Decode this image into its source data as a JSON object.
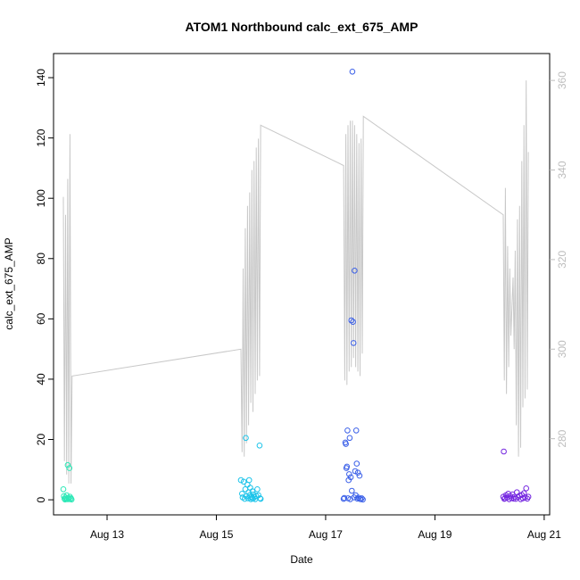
{
  "chart_data": {
    "type": "scatter",
    "title": "ATOM1 Northbound calc_ext_675_AMP",
    "xlabel": "Date",
    "ylabel": "calc_ext_675_AMP",
    "x_tick_labels": [
      "Aug 13",
      "Aug 15",
      "Aug 17",
      "Aug 19",
      "Aug 21"
    ],
    "x_ticks_day": [
      13,
      15,
      17,
      19,
      21
    ],
    "xlim_day": [
      12.02,
      21.1
    ],
    "ylim": [
      -5,
      148
    ],
    "y_ticks": [
      0,
      20,
      40,
      60,
      80,
      100,
      120,
      140
    ],
    "y2_ticks": [
      280,
      300,
      320,
      340,
      360
    ],
    "y2lim": [
      263,
      366
    ],
    "y2_color": "#bdbdbd",
    "line_color": "#c8c8c8",
    "line_series": {
      "name": "",
      "points": [
        [
          12.2,
          334
        ],
        [
          12.22,
          275
        ],
        [
          12.24,
          330
        ],
        [
          12.26,
          272
        ],
        [
          12.28,
          338
        ],
        [
          12.3,
          270
        ],
        [
          12.32,
          348
        ],
        [
          12.34,
          270
        ],
        [
          12.36,
          294
        ],
        [
          15.45,
          300
        ],
        [
          15.47,
          277
        ],
        [
          15.49,
          318
        ],
        [
          15.51,
          276
        ],
        [
          15.53,
          327
        ],
        [
          15.55,
          279
        ],
        [
          15.57,
          332
        ],
        [
          15.59,
          283
        ],
        [
          15.61,
          335
        ],
        [
          15.63,
          288
        ],
        [
          15.65,
          340
        ],
        [
          15.67,
          286
        ],
        [
          15.69,
          342
        ],
        [
          15.71,
          290
        ],
        [
          15.73,
          345
        ],
        [
          15.75,
          293
        ],
        [
          15.77,
          347
        ],
        [
          15.79,
          294
        ],
        [
          15.81,
          350
        ],
        [
          17.33,
          341
        ],
        [
          17.35,
          293
        ],
        [
          17.37,
          348
        ],
        [
          17.39,
          292
        ],
        [
          17.41,
          350
        ],
        [
          17.43,
          295
        ],
        [
          17.45,
          351
        ],
        [
          17.47,
          296
        ],
        [
          17.49,
          351
        ],
        [
          17.51,
          298
        ],
        [
          17.53,
          350
        ],
        [
          17.55,
          296
        ],
        [
          17.57,
          348
        ],
        [
          17.59,
          295
        ],
        [
          17.61,
          346
        ],
        [
          17.63,
          294
        ],
        [
          17.65,
          347
        ],
        [
          17.67,
          299
        ],
        [
          17.69,
          352
        ],
        [
          20.25,
          330
        ],
        [
          20.27,
          293
        ],
        [
          20.29,
          336
        ],
        [
          20.31,
          290
        ],
        [
          20.33,
          323
        ],
        [
          20.35,
          296
        ],
        [
          20.37,
          318
        ],
        [
          20.39,
          303
        ],
        [
          20.41,
          309
        ],
        [
          20.43,
          316
        ],
        [
          20.45,
          300
        ],
        [
          20.47,
          322
        ],
        [
          20.49,
          283
        ],
        [
          20.51,
          329
        ],
        [
          20.53,
          276
        ],
        [
          20.55,
          332
        ],
        [
          20.57,
          278
        ],
        [
          20.59,
          342
        ],
        [
          20.61,
          287
        ],
        [
          20.63,
          350
        ],
        [
          20.65,
          289
        ],
        [
          20.67,
          360
        ],
        [
          20.69,
          291
        ],
        [
          20.71,
          344
        ]
      ]
    },
    "scatter_series": [
      {
        "name": "",
        "color": "#2ee8b7",
        "points": [
          [
            12.2,
            3.5
          ],
          [
            12.21,
            1.2
          ],
          [
            12.22,
            0.4
          ],
          [
            12.23,
            0.1
          ],
          [
            12.24,
            0.8
          ],
          [
            12.25,
            0.3
          ],
          [
            12.26,
            1.5
          ],
          [
            12.27,
            0.2
          ],
          [
            12.28,
            11.5
          ],
          [
            12.29,
            0.6
          ],
          [
            12.3,
            0.2
          ],
          [
            12.31,
            10.5
          ],
          [
            12.32,
            1.0
          ],
          [
            12.33,
            0.3
          ],
          [
            12.34,
            0.5
          ],
          [
            12.35,
            0.1
          ]
        ]
      },
      {
        "name": "",
        "color": "#1dc4ea",
        "points": [
          [
            15.45,
            6.5
          ],
          [
            15.47,
            2.0
          ],
          [
            15.48,
            0.8
          ],
          [
            15.5,
            6.0
          ],
          [
            15.52,
            0.3
          ],
          [
            15.53,
            3.5
          ],
          [
            15.54,
            20.5
          ],
          [
            15.55,
            1.2
          ],
          [
            15.57,
            5.0
          ],
          [
            15.58,
            0.5
          ],
          [
            15.59,
            2.5
          ],
          [
            15.6,
            6.5
          ],
          [
            15.61,
            1.5
          ],
          [
            15.62,
            4.0
          ],
          [
            15.63,
            0.2
          ],
          [
            15.64,
            1.0
          ],
          [
            15.65,
            0.6
          ],
          [
            15.66,
            2.8
          ],
          [
            15.67,
            0.4
          ],
          [
            15.68,
            1.8
          ],
          [
            15.7,
            0.9
          ],
          [
            15.71,
            0.2
          ],
          [
            15.73,
            1.2
          ],
          [
            15.75,
            3.5
          ],
          [
            15.77,
            1.5
          ],
          [
            15.79,
            18.0
          ],
          [
            15.8,
            0.5
          ],
          [
            15.81,
            0.3
          ]
        ]
      },
      {
        "name": "",
        "color": "#3a5fe8",
        "points": [
          [
            17.33,
            0.3
          ],
          [
            17.34,
            0.6
          ],
          [
            17.36,
            19.0
          ],
          [
            17.37,
            18.5
          ],
          [
            17.38,
            10.5
          ],
          [
            17.39,
            11.0
          ],
          [
            17.4,
            23.0
          ],
          [
            17.41,
            0.5
          ],
          [
            17.42,
            6.5
          ],
          [
            17.43,
            8.5
          ],
          [
            17.44,
            20.5
          ],
          [
            17.45,
            0.2
          ],
          [
            17.46,
            7.5
          ],
          [
            17.47,
            59.5
          ],
          [
            17.48,
            3.0
          ],
          [
            17.49,
            142.0
          ],
          [
            17.5,
            59.0
          ],
          [
            17.51,
            52.0
          ],
          [
            17.52,
            0.8
          ],
          [
            17.53,
            76.0
          ],
          [
            17.54,
            9.5
          ],
          [
            17.55,
            1.5
          ],
          [
            17.56,
            23.0
          ],
          [
            17.57,
            12.0
          ],
          [
            17.58,
            0.4
          ],
          [
            17.59,
            9.0
          ],
          [
            17.6,
            0.7
          ],
          [
            17.62,
            8.0
          ],
          [
            17.63,
            0.3
          ],
          [
            17.64,
            0.2
          ],
          [
            17.66,
            0.5
          ],
          [
            17.68,
            0.1
          ]
        ]
      },
      {
        "name": "",
        "color": "#7426e0",
        "points": [
          [
            20.25,
            1.0
          ],
          [
            20.26,
            16.0
          ],
          [
            20.27,
            0.3
          ],
          [
            20.28,
            0.5
          ],
          [
            20.3,
            1.5
          ],
          [
            20.32,
            0.8
          ],
          [
            20.34,
            2.0
          ],
          [
            20.36,
            0.2
          ],
          [
            20.38,
            1.2
          ],
          [
            20.4,
            0.6
          ],
          [
            20.42,
            1.8
          ],
          [
            20.44,
            0.4
          ],
          [
            20.46,
            1.0
          ],
          [
            20.48,
            0.3
          ],
          [
            20.5,
            2.5
          ],
          [
            20.52,
            0.9
          ],
          [
            20.55,
            1.4
          ],
          [
            20.57,
            0.2
          ],
          [
            20.59,
            1.6
          ],
          [
            20.61,
            0.5
          ],
          [
            20.63,
            2.2
          ],
          [
            20.65,
            0.8
          ],
          [
            20.67,
            3.8
          ],
          [
            20.69,
            0.4
          ],
          [
            20.71,
            1.0
          ]
        ]
      }
    ],
    "grid": false,
    "legend": "none"
  }
}
